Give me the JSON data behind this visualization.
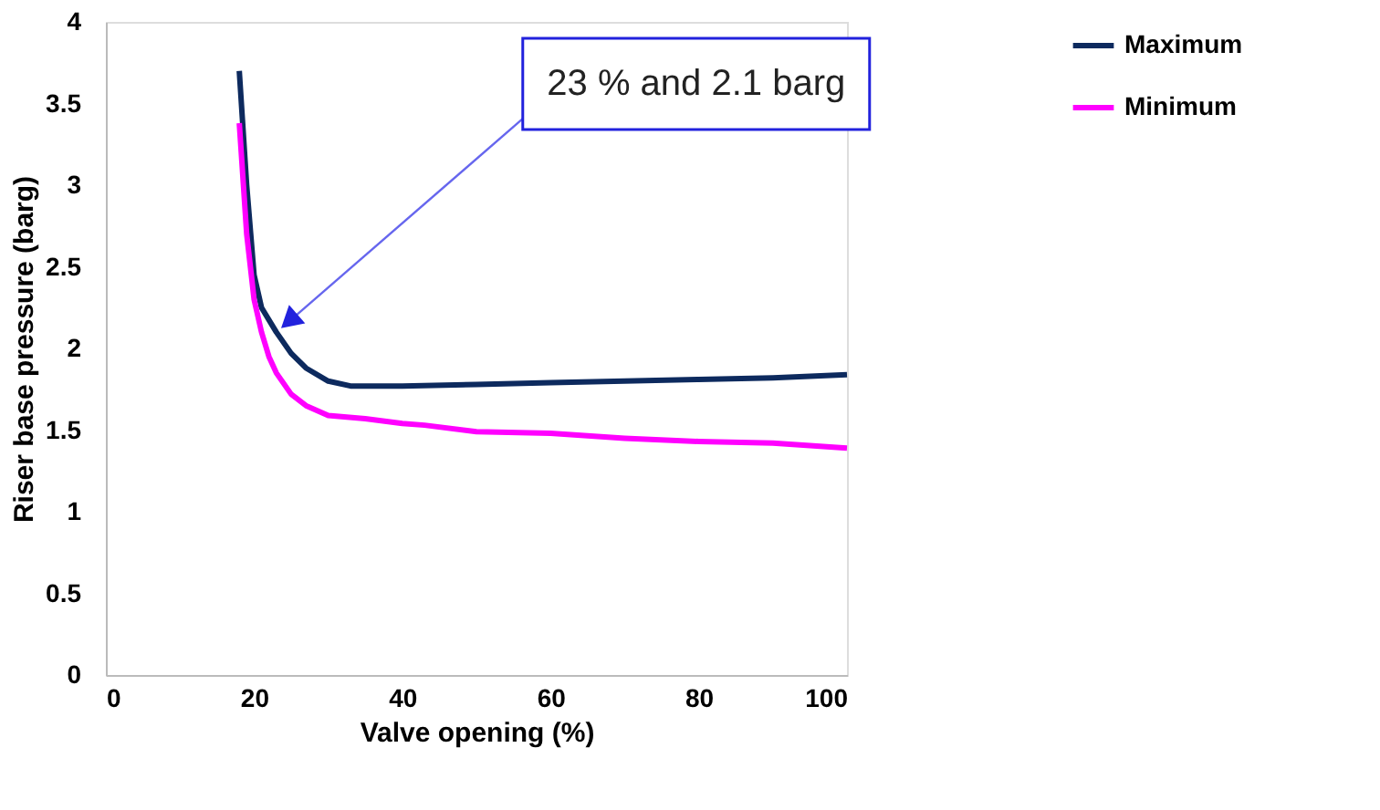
{
  "chart_data": {
    "type": "line",
    "xlabel": "Valve opening (%)",
    "ylabel": "Riser base pressure (barg)",
    "xlim": [
      0,
      100
    ],
    "xticks": [
      0,
      20,
      40,
      60,
      80,
      100
    ],
    "ylim": [
      0,
      4
    ],
    "yticks": [
      {
        "value": 0,
        "label": "0"
      },
      0.5,
      {
        "value": 1,
        "label": "1"
      },
      1.5,
      {
        "value": 2,
        "label": "2"
      },
      2.5,
      {
        "value": 3,
        "label": "3"
      },
      3.5,
      {
        "value": 4,
        "label": "4"
      }
    ],
    "grid": false,
    "legend": "right",
    "marker": "none",
    "line_style": "solid",
    "series": [
      {
        "name": "Maximum",
        "color": "#0d2a5e",
        "x": [
          18,
          19,
          20,
          21,
          23,
          25,
          27,
          30,
          33,
          40,
          50,
          60,
          70,
          80,
          90,
          100
        ],
        "values": [
          3.7,
          3.0,
          2.45,
          2.25,
          2.1,
          1.97,
          1.88,
          1.8,
          1.77,
          1.77,
          1.78,
          1.79,
          1.8,
          1.81,
          1.82,
          1.84
        ]
      },
      {
        "name": "Minimum",
        "color": "#ff00ff",
        "x": [
          18,
          19,
          20,
          21,
          22,
          23,
          25,
          27,
          30,
          35,
          40,
          43,
          50,
          60,
          70,
          80,
          90,
          100
        ],
        "values": [
          3.38,
          2.7,
          2.3,
          2.1,
          1.95,
          1.85,
          1.72,
          1.65,
          1.59,
          1.57,
          1.54,
          1.53,
          1.49,
          1.48,
          1.45,
          1.43,
          1.42,
          1.39
        ]
      }
    ],
    "annotations": [
      {
        "text": "23 % and 2.1 barg",
        "x": 23,
        "y": 2.1
      }
    ]
  }
}
